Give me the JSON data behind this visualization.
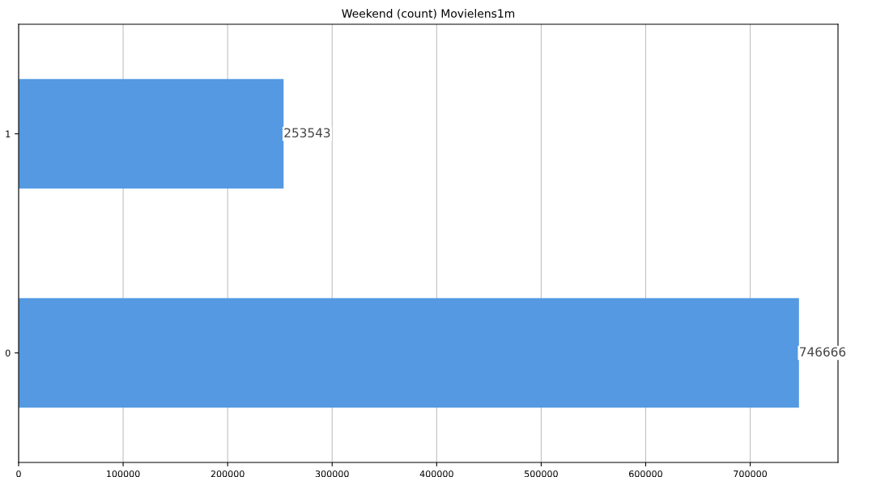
{
  "chart_data": {
    "type": "bar",
    "orientation": "horizontal",
    "title": "Weekend (count) Movielens1m",
    "categories": [
      "1",
      "0"
    ],
    "values": [
      253543,
      746666
    ],
    "color": "#5499e2",
    "xlim": [
      0,
      784000
    ],
    "xticks": [
      0,
      100000,
      200000,
      300000,
      400000,
      500000,
      600000,
      700000
    ],
    "grid": "x",
    "data_labels": true
  }
}
